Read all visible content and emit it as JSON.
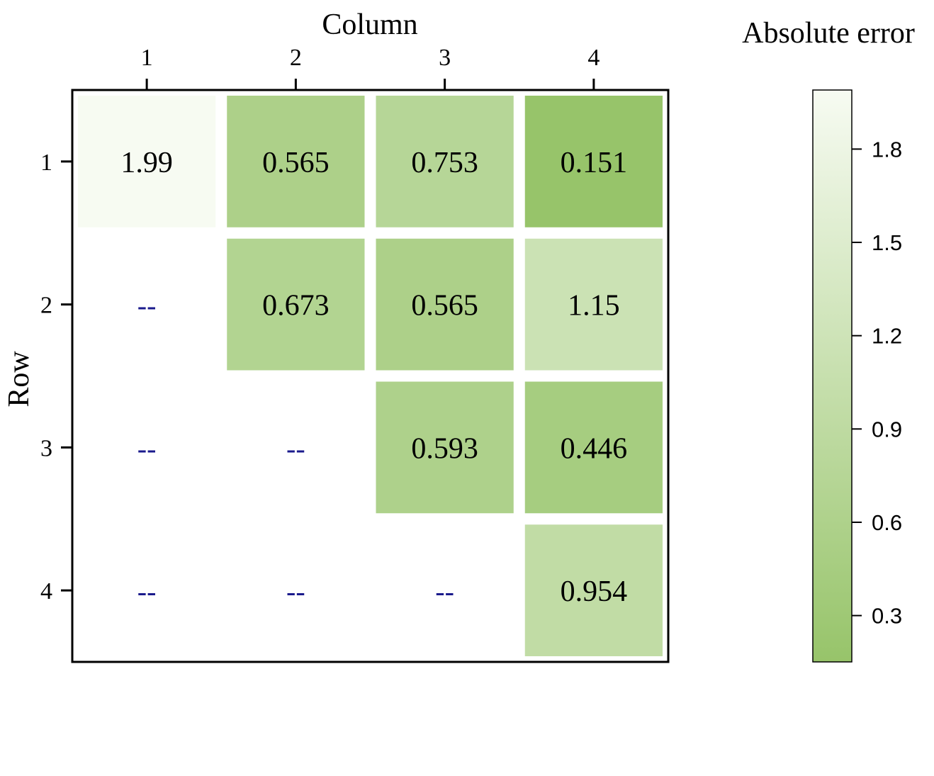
{
  "chart_data": {
    "type": "heatmap",
    "xlabel": "Column",
    "ylabel": "Row",
    "x_categories": [
      "1",
      "2",
      "3",
      "4"
    ],
    "y_categories": [
      "1",
      "2",
      "3",
      "4"
    ],
    "missing_label": "--",
    "cells": [
      [
        1.99,
        0.565,
        0.753,
        0.151
      ],
      [
        null,
        0.673,
        0.565,
        1.15
      ],
      [
        null,
        null,
        0.593,
        0.446
      ],
      [
        null,
        null,
        null,
        0.954
      ]
    ],
    "cell_labels": [
      [
        "1.99",
        "0.565",
        "0.753",
        "0.151"
      ],
      [
        "--",
        "0.673",
        "0.565",
        "1.15"
      ],
      [
        "--",
        "--",
        "0.593",
        "0.446"
      ],
      [
        "--",
        "--",
        "--",
        "0.954"
      ]
    ],
    "colorbar": {
      "title": "Absolute error",
      "range": [
        0.151,
        1.99
      ],
      "ticks": [
        0.3,
        0.6,
        0.9,
        1.2,
        1.5,
        1.8
      ],
      "tick_labels": [
        "0.3",
        "0.6",
        "0.9",
        "1.2",
        "1.5",
        "1.8"
      ],
      "color_low": "#97c46a",
      "color_high": "#f7fbf2"
    },
    "colors": {
      "missing_label": "#1a1a8c",
      "frame": "#000000",
      "text": "#000000"
    }
  }
}
